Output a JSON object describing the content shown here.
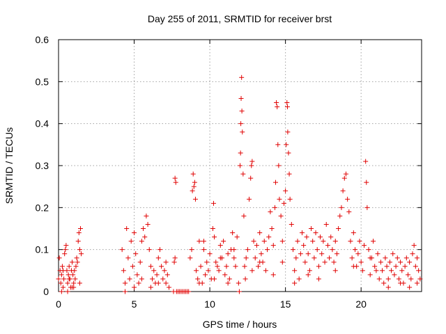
{
  "chart_data": {
    "type": "scatter",
    "title": "Day 255 of 2011, SRMTID for receiver brst",
    "xlabel": "GPS time / hours",
    "ylabel": "SRMTID / TECUs",
    "xlim": [
      0,
      24
    ],
    "ylim": [
      0,
      0.6
    ],
    "xticks": [
      0,
      5,
      10,
      15,
      20
    ],
    "yticks": [
      0,
      0.1,
      0.2,
      0.3,
      0.4,
      0.5,
      0.6
    ],
    "xtick_labels": [
      "0",
      "5",
      "10",
      "15",
      "20"
    ],
    "ytick_labels": [
      "0",
      "0.1",
      "0.2",
      "0.3",
      "0.4",
      "0.5",
      "0.6"
    ],
    "grid": true,
    "marker": "+",
    "marker_color": "#e00000",
    "series": [
      {
        "name": "SRMTID",
        "points": [
          [
            0.0,
            0.03
          ],
          [
            0.05,
            0.08
          ],
          [
            0.1,
            0.05
          ],
          [
            0.15,
            0.02
          ],
          [
            0.2,
            0.04
          ],
          [
            0.25,
            0.06
          ],
          [
            0.3,
            0.01
          ],
          [
            0.35,
            0.03
          ],
          [
            0.4,
            0.09
          ],
          [
            0.45,
            0.1
          ],
          [
            0.5,
            0.11
          ],
          [
            0.55,
            0.05
          ],
          [
            0.6,
            0.02
          ],
          [
            0.65,
            0.04
          ],
          [
            0.7,
            0.06
          ],
          [
            0.75,
            0.03
          ],
          [
            0.8,
            0.01
          ],
          [
            0.85,
            0.05
          ],
          [
            0.9,
            0.07
          ],
          [
            0.95,
            0.04
          ],
          [
            1.0,
            0.02
          ],
          [
            1.05,
            0.05
          ],
          [
            1.1,
            0.03
          ],
          [
            1.15,
            0.06
          ],
          [
            1.2,
            0.08
          ],
          [
            1.25,
            0.07
          ],
          [
            1.3,
            0.12
          ],
          [
            1.35,
            0.14
          ],
          [
            1.4,
            0.1
          ],
          [
            1.45,
            0.15
          ],
          [
            1.5,
            0.09
          ],
          [
            0.2,
            0.0
          ],
          [
            0.6,
            0.0
          ],
          [
            1.0,
            0.01
          ],
          [
            1.4,
            0.02
          ],
          [
            0.3,
            0.05
          ],
          [
            0.7,
            0.03
          ],
          [
            0.9,
            0.01
          ],
          [
            4.2,
            0.1
          ],
          [
            4.3,
            0.05
          ],
          [
            4.4,
            0.02
          ],
          [
            4.5,
            0.15
          ],
          [
            4.6,
            0.08
          ],
          [
            4.7,
            0.03
          ],
          [
            4.8,
            0.12
          ],
          [
            4.9,
            0.06
          ],
          [
            5.0,
            0.14
          ],
          [
            5.1,
            0.09
          ],
          [
            5.2,
            0.04
          ],
          [
            5.3,
            0.02
          ],
          [
            5.4,
            0.07
          ],
          [
            5.5,
            0.12
          ],
          [
            5.6,
            0.15
          ],
          [
            5.7,
            0.13
          ],
          [
            5.8,
            0.18
          ],
          [
            5.9,
            0.16
          ],
          [
            6.0,
            0.1
          ],
          [
            6.1,
            0.06
          ],
          [
            6.2,
            0.03
          ],
          [
            6.3,
            0.05
          ],
          [
            6.4,
            0.02
          ],
          [
            6.5,
            0.04
          ],
          [
            6.6,
            0.08
          ],
          [
            6.7,
            0.1
          ],
          [
            6.8,
            0.06
          ],
          [
            6.9,
            0.03
          ],
          [
            7.0,
            0.05
          ],
          [
            7.1,
            0.02
          ],
          [
            7.2,
            0.04
          ],
          [
            7.3,
            0.01
          ],
          [
            4.4,
            0.0
          ],
          [
            5.0,
            0.01
          ],
          [
            5.5,
            0.03
          ],
          [
            6.1,
            0.01
          ],
          [
            6.6,
            0.02
          ],
          [
            7.1,
            0.07
          ],
          [
            7.6,
            0.0
          ],
          [
            7.7,
            0.27
          ],
          [
            7.75,
            0.26
          ],
          [
            7.8,
            0.0
          ],
          [
            7.9,
            0.0
          ],
          [
            8.0,
            0.0
          ],
          [
            8.1,
            0.0
          ],
          [
            8.2,
            0.0
          ],
          [
            8.3,
            0.0
          ],
          [
            8.4,
            0.0
          ],
          [
            8.5,
            0.0
          ],
          [
            8.6,
            0.0
          ],
          [
            7.7,
            0.08
          ],
          [
            7.65,
            0.07
          ],
          [
            8.7,
            0.08
          ],
          [
            8.8,
            0.1
          ],
          [
            8.85,
            0.24
          ],
          [
            8.9,
            0.28
          ],
          [
            8.95,
            0.25
          ],
          [
            9.0,
            0.26
          ],
          [
            9.05,
            0.22
          ],
          [
            9.1,
            0.05
          ],
          [
            9.2,
            0.03
          ],
          [
            9.3,
            0.12
          ],
          [
            9.4,
            0.06
          ],
          [
            9.5,
            0.02
          ],
          [
            9.6,
            0.1
          ],
          [
            9.7,
            0.04
          ],
          [
            9.8,
            0.07
          ],
          [
            9.9,
            0.05
          ],
          [
            10.0,
            0.09
          ],
          [
            10.1,
            0.03
          ],
          [
            10.2,
            0.15
          ],
          [
            10.25,
            0.21
          ],
          [
            10.3,
            0.13
          ],
          [
            10.4,
            0.07
          ],
          [
            10.5,
            0.06
          ],
          [
            10.6,
            0.05
          ],
          [
            10.7,
            0.11
          ],
          [
            10.8,
            0.08
          ],
          [
            10.9,
            0.12
          ],
          [
            11.0,
            0.04
          ],
          [
            11.1,
            0.06
          ],
          [
            11.2,
            0.09
          ],
          [
            11.3,
            0.03
          ],
          [
            11.4,
            0.1
          ],
          [
            11.5,
            0.14
          ],
          [
            11.6,
            0.08
          ],
          [
            11.7,
            0.06
          ],
          [
            11.8,
            0.13
          ],
          [
            11.9,
            0.02
          ],
          [
            11.95,
            0.0
          ],
          [
            12.0,
            0.3
          ],
          [
            12.03,
            0.33
          ],
          [
            12.05,
            0.4
          ],
          [
            12.07,
            0.46
          ],
          [
            12.1,
            0.51
          ],
          [
            12.12,
            0.43
          ],
          [
            12.15,
            0.38
          ],
          [
            12.2,
            0.28
          ],
          [
            12.25,
            0.18
          ],
          [
            12.3,
            0.06
          ],
          [
            12.35,
            0.03
          ],
          [
            12.4,
            0.08
          ],
          [
            12.5,
            0.1
          ],
          [
            12.6,
            0.22
          ],
          [
            12.7,
            0.27
          ],
          [
            12.75,
            0.3
          ],
          [
            12.8,
            0.31
          ],
          [
            12.9,
            0.12
          ],
          [
            13.0,
            0.08
          ],
          [
            13.1,
            0.11
          ],
          [
            13.2,
            0.06
          ],
          [
            13.3,
            0.14
          ],
          [
            13.4,
            0.09
          ],
          [
            13.5,
            0.07
          ],
          [
            13.6,
            0.12
          ],
          [
            13.7,
            0.05
          ],
          [
            13.8,
            0.1
          ],
          [
            13.9,
            0.13
          ],
          [
            14.0,
            0.19
          ],
          [
            14.1,
            0.15
          ],
          [
            14.2,
            0.11
          ],
          [
            14.3,
            0.2
          ],
          [
            14.35,
            0.26
          ],
          [
            14.4,
            0.45
          ],
          [
            14.45,
            0.44
          ],
          [
            14.5,
            0.35
          ],
          [
            14.55,
            0.3
          ],
          [
            14.6,
            0.22
          ],
          [
            14.7,
            0.18
          ],
          [
            14.8,
            0.12
          ],
          [
            14.9,
            0.21
          ],
          [
            15.0,
            0.24
          ],
          [
            15.05,
            0.35
          ],
          [
            15.1,
            0.45
          ],
          [
            15.13,
            0.44
          ],
          [
            15.15,
            0.38
          ],
          [
            15.2,
            0.33
          ],
          [
            15.25,
            0.28
          ],
          [
            15.3,
            0.22
          ],
          [
            15.4,
            0.16
          ],
          [
            15.5,
            0.1
          ],
          [
            15.6,
            0.05
          ],
          [
            15.7,
            0.08
          ],
          [
            15.8,
            0.12
          ],
          [
            15.9,
            0.03
          ],
          [
            16.0,
            0.09
          ],
          [
            16.1,
            0.14
          ],
          [
            16.2,
            0.11
          ],
          [
            16.3,
            0.07
          ],
          [
            16.4,
            0.13
          ],
          [
            16.5,
            0.09
          ],
          [
            16.6,
            0.05
          ],
          [
            16.7,
            0.15
          ],
          [
            16.8,
            0.12
          ],
          [
            16.9,
            0.08
          ],
          [
            17.0,
            0.14
          ],
          [
            17.1,
            0.1
          ],
          [
            17.2,
            0.06
          ],
          [
            17.3,
            0.13
          ],
          [
            17.4,
            0.09
          ],
          [
            17.5,
            0.12
          ],
          [
            17.6,
            0.07
          ],
          [
            17.7,
            0.16
          ],
          [
            17.8,
            0.11
          ],
          [
            17.9,
            0.08
          ],
          [
            18.0,
            0.13
          ],
          [
            18.1,
            0.1
          ],
          [
            18.2,
            0.07
          ],
          [
            18.3,
            0.12
          ],
          [
            18.4,
            0.09
          ],
          [
            18.5,
            0.15
          ],
          [
            18.6,
            0.18
          ],
          [
            18.7,
            0.2
          ],
          [
            18.8,
            0.24
          ],
          [
            18.9,
            0.27
          ],
          [
            19.0,
            0.28
          ],
          [
            19.1,
            0.22
          ],
          [
            19.2,
            0.19
          ],
          [
            19.3,
            0.12
          ],
          [
            19.4,
            0.08
          ],
          [
            19.5,
            0.14
          ],
          [
            19.6,
            0.1
          ],
          [
            19.7,
            0.06
          ],
          [
            19.8,
            0.09
          ],
          [
            19.9,
            0.12
          ],
          [
            20.0,
            0.07
          ],
          [
            20.1,
            0.05
          ],
          [
            20.2,
            0.11
          ],
          [
            20.3,
            0.31
          ],
          [
            20.35,
            0.26
          ],
          [
            20.4,
            0.2
          ],
          [
            20.5,
            0.1
          ],
          [
            20.6,
            0.04
          ],
          [
            20.7,
            0.08
          ],
          [
            20.8,
            0.12
          ],
          [
            20.9,
            0.06
          ],
          [
            21.0,
            0.05
          ],
          [
            21.1,
            0.09
          ],
          [
            21.2,
            0.03
          ],
          [
            21.3,
            0.07
          ],
          [
            21.4,
            0.05
          ],
          [
            21.5,
            0.02
          ],
          [
            21.6,
            0.08
          ],
          [
            21.7,
            0.06
          ],
          [
            21.8,
            0.03
          ],
          [
            21.9,
            0.07
          ],
          [
            22.0,
            0.05
          ],
          [
            22.1,
            0.09
          ],
          [
            22.2,
            0.04
          ],
          [
            22.3,
            0.06
          ],
          [
            22.4,
            0.08
          ],
          [
            22.5,
            0.03
          ],
          [
            22.6,
            0.07
          ],
          [
            22.7,
            0.05
          ],
          [
            22.8,
            0.02
          ],
          [
            22.9,
            0.06
          ],
          [
            23.0,
            0.08
          ],
          [
            23.1,
            0.04
          ],
          [
            23.2,
            0.07
          ],
          [
            23.3,
            0.03
          ],
          [
            23.4,
            0.09
          ],
          [
            23.5,
            0.11
          ],
          [
            23.6,
            0.06
          ],
          [
            23.7,
            0.02
          ],
          [
            23.8,
            0.05
          ],
          [
            23.9,
            0.03
          ],
          [
            9.3,
            0.02
          ],
          [
            9.6,
            0.12
          ],
          [
            10.3,
            0.03
          ],
          [
            10.7,
            0.08
          ],
          [
            11.2,
            0.02
          ],
          [
            11.6,
            0.1
          ],
          [
            12.8,
            0.05
          ],
          [
            13.3,
            0.07
          ],
          [
            14.2,
            0.04
          ],
          [
            14.8,
            0.07
          ],
          [
            15.6,
            0.02
          ],
          [
            16.5,
            0.04
          ],
          [
            17.2,
            0.03
          ],
          [
            18.3,
            0.05
          ],
          [
            19.5,
            0.06
          ],
          [
            20.6,
            0.08
          ],
          [
            21.8,
            0.01
          ],
          [
            22.6,
            0.02
          ],
          [
            23.2,
            0.01
          ],
          [
            23.7,
            0.08
          ]
        ]
      }
    ]
  }
}
